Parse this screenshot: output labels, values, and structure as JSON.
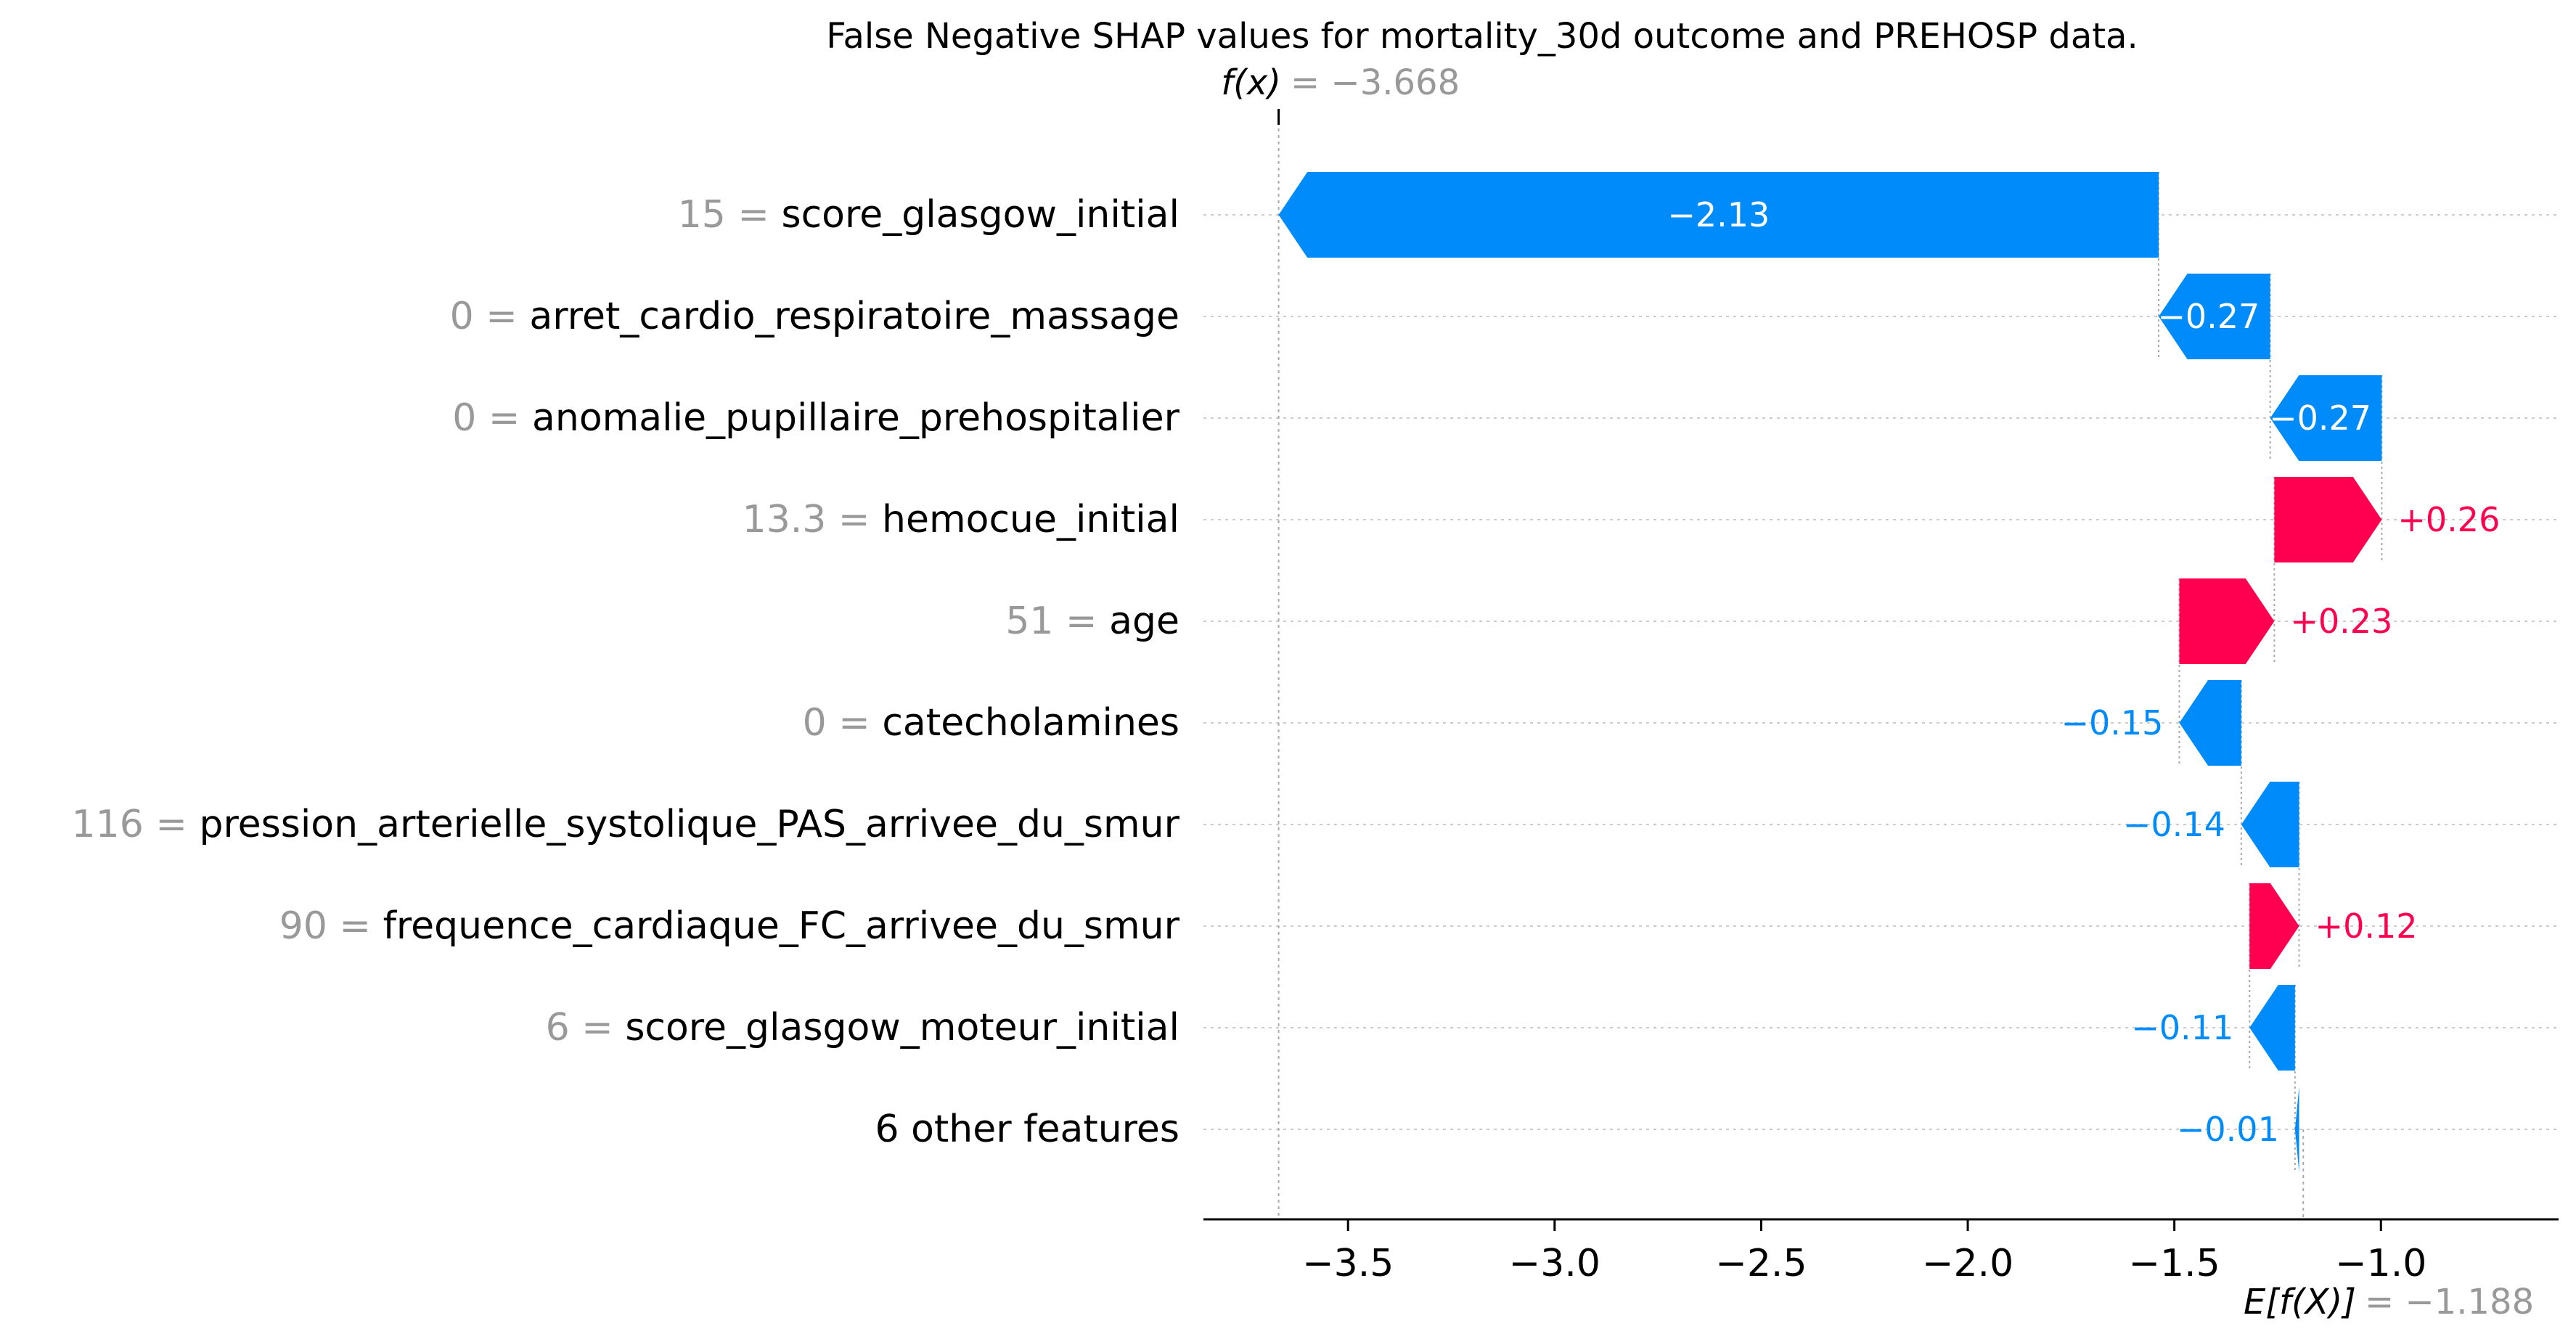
{
  "chart_data": {
    "type": "waterfall",
    "title": "False Negative SHAP values for mortality_30d outcome and PREHOSP data.",
    "fx": {
      "label": "f(x)",
      "value_text": "= −3.668",
      "value": -3.668
    },
    "base": {
      "label": "E[f(X)]",
      "value_text": "= −1.188",
      "value": -1.188
    },
    "rows": [
      {
        "value_label": "15",
        "feature": "score_glasgow_initial",
        "shap": -2.13,
        "shap_text": "−2.13"
      },
      {
        "value_label": "0",
        "feature": "arret_cardio_respiratoire_massage",
        "shap": -0.27,
        "shap_text": "−0.27"
      },
      {
        "value_label": "0",
        "feature": "anomalie_pupillaire_prehospitalier",
        "shap": -0.27,
        "shap_text": "−0.27"
      },
      {
        "value_label": "13.3",
        "feature": "hemocue_initial",
        "shap": 0.26,
        "shap_text": "+0.26"
      },
      {
        "value_label": "51",
        "feature": "age",
        "shap": 0.23,
        "shap_text": "+0.23"
      },
      {
        "value_label": "0",
        "feature": "catecholamines",
        "shap": -0.15,
        "shap_text": "−0.15"
      },
      {
        "value_label": "116",
        "feature": "pression_arterielle_systolique_PAS_arrivee_du_smur",
        "shap": -0.14,
        "shap_text": "−0.14"
      },
      {
        "value_label": "90",
        "feature": "frequence_cardiaque_FC_arrivee_du_smur",
        "shap": 0.12,
        "shap_text": "+0.12"
      },
      {
        "value_label": "6",
        "feature": "score_glasgow_moteur_initial",
        "shap": -0.11,
        "shap_text": "−0.11"
      },
      {
        "value_label": "",
        "feature": "6 other features",
        "shap": -0.01,
        "shap_text": "−0.01"
      }
    ],
    "x_ticks": [
      -3.5,
      -3.0,
      -2.5,
      -2.0,
      -1.5,
      -1.0
    ],
    "x_tick_labels": [
      "−3.5",
      "−3.0",
      "−2.5",
      "−2.0",
      "−1.5",
      "−1.0"
    ],
    "xlim": [
      -3.85,
      -0.57
    ],
    "colors": {
      "positive": "#ff0051",
      "negative": "#008bfb",
      "label_gray": "#999999",
      "text": "#000000",
      "grid": "#cccccc"
    }
  }
}
